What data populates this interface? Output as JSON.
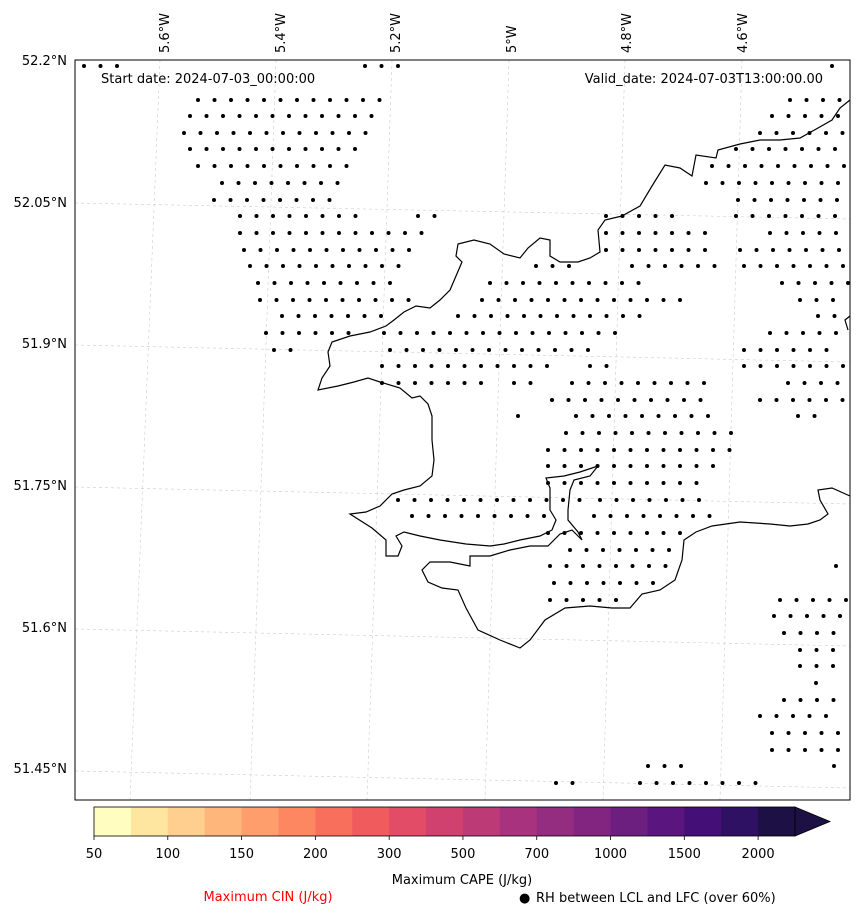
{
  "map": {
    "start_date": "Start date: 2024-07-03_00:00:00",
    "valid_date": "Valid_date: 2024-07-03T13:00:00.00",
    "lon_labels": [
      "5.6°W",
      "5.4°W",
      "5.2°W",
      "5°W",
      "4.8°W",
      "4.6°W"
    ],
    "lat_labels": [
      "52.2°N",
      "52.05°N",
      "51.9°N",
      "51.75°N",
      "51.6°N",
      "51.45°N"
    ],
    "dot_region_note": "stipple pattern indicates RH between LCL and LFC over 60%"
  },
  "colorbar": {
    "title": "Maximum CAPE (J/kg)",
    "tick_labels": [
      "50",
      "100",
      "150",
      "200",
      "300",
      "500",
      "700",
      "1000",
      "1500",
      "2000"
    ],
    "colors": [
      "#fffdbf",
      "#fee5a0",
      "#fecf8e",
      "#feb67b",
      "#fe9e6c",
      "#fc8761",
      "#f8705c",
      "#f05b5e",
      "#e24c66",
      "#d0416f",
      "#bc3a76",
      "#a8327d",
      "#942c80",
      "#812581",
      "#6d1f80",
      "#5a167e",
      "#440f76",
      "#2f1163",
      "#1c1044"
    ],
    "extend": "max"
  },
  "legend": {
    "cin_label": "Maximum CIN (J/kg)",
    "cin_color": "#ff0000",
    "rh_symbol": "●",
    "rh_label": "RH between LCL and LFC (over 60%)"
  }
}
